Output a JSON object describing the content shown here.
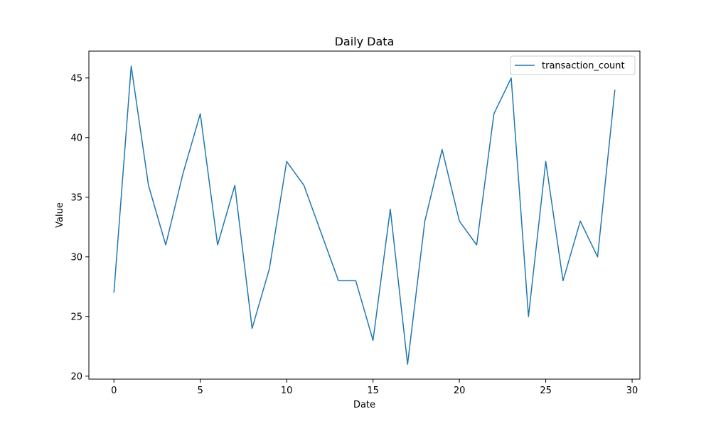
{
  "chart_data": {
    "type": "line",
    "title": "Daily Data",
    "xlabel": "Date",
    "ylabel": "Value",
    "xlim": [
      -1.45,
      30.45
    ],
    "ylim": [
      19.75,
      47.25
    ],
    "x_ticks": [
      0,
      5,
      10,
      15,
      20,
      25,
      30
    ],
    "y_ticks": [
      20,
      25,
      30,
      35,
      40,
      45
    ],
    "grid": false,
    "legend_position": "top-right",
    "series": [
      {
        "name": "transaction_count",
        "color": "#1f77b4",
        "x": [
          0,
          1,
          2,
          3,
          4,
          5,
          6,
          7,
          8,
          9,
          10,
          11,
          12,
          13,
          14,
          15,
          16,
          17,
          18,
          19,
          20,
          21,
          22,
          23,
          24,
          25,
          26,
          27,
          28,
          29
        ],
        "values": [
          27,
          46,
          36,
          31,
          37,
          42,
          31,
          36,
          24,
          29,
          38,
          36,
          32,
          28,
          28,
          23,
          34,
          21,
          33,
          39,
          33,
          31,
          42,
          45,
          25,
          38,
          28,
          33,
          30,
          44
        ]
      }
    ]
  }
}
